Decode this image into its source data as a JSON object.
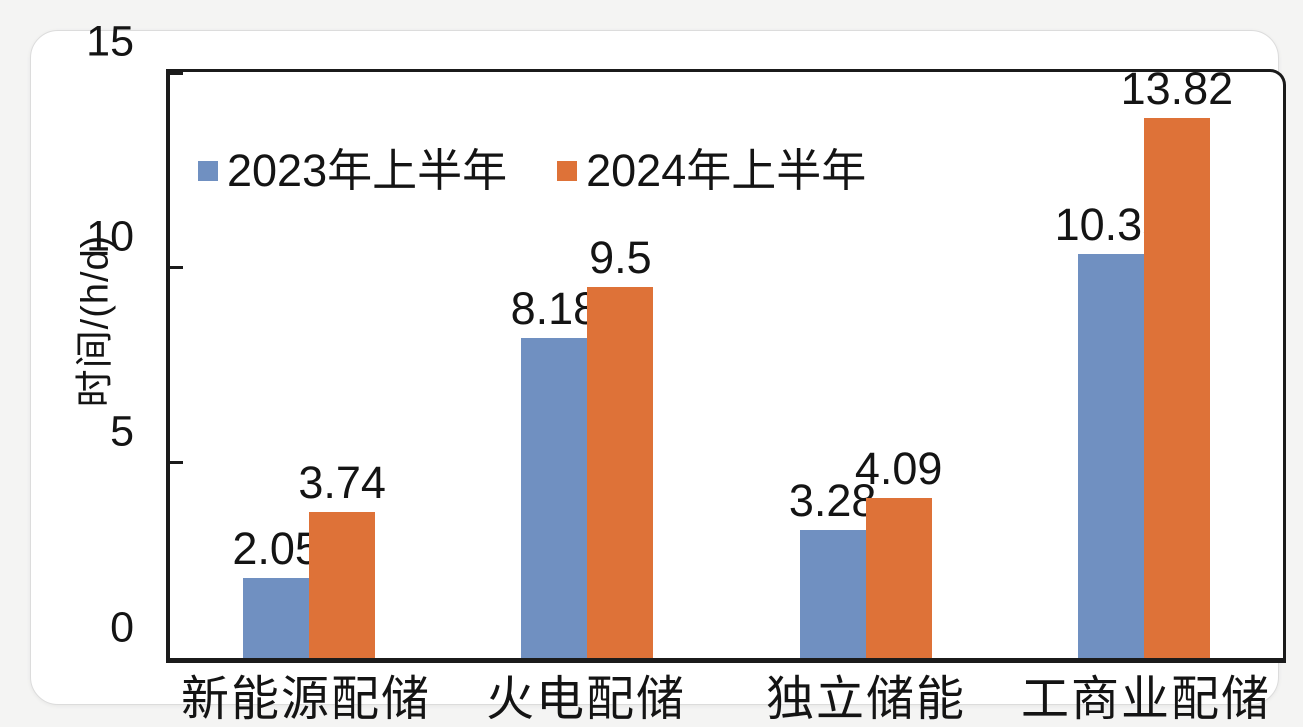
{
  "chart_data": {
    "type": "bar",
    "title": "",
    "xlabel": "",
    "ylabel": "时间/(h/d)",
    "ylim": [
      0,
      15
    ],
    "yticks": [
      0,
      5,
      10,
      15
    ],
    "grid": false,
    "legend_position": "inside-top-left",
    "bar_value_labels_shown": true,
    "categories": [
      "新能源配储",
      "火电配储",
      "独立储能",
      "工商业配储"
    ],
    "series": [
      {
        "name": "2023年上半年",
        "color": "#7090c1",
        "values": [
          2.05,
          8.18,
          3.28,
          10.33
        ]
      },
      {
        "name": "2024年上半年",
        "color": "#de7238",
        "values": [
          3.74,
          9.5,
          4.09,
          13.82
        ]
      }
    ]
  },
  "colors": {
    "text": "#141414",
    "axis": "#1b1b1b",
    "card_background": "#ffffff",
    "page_background": "#f4f4f3",
    "series_2023": "#7090c1",
    "series_2024": "#de7238"
  }
}
